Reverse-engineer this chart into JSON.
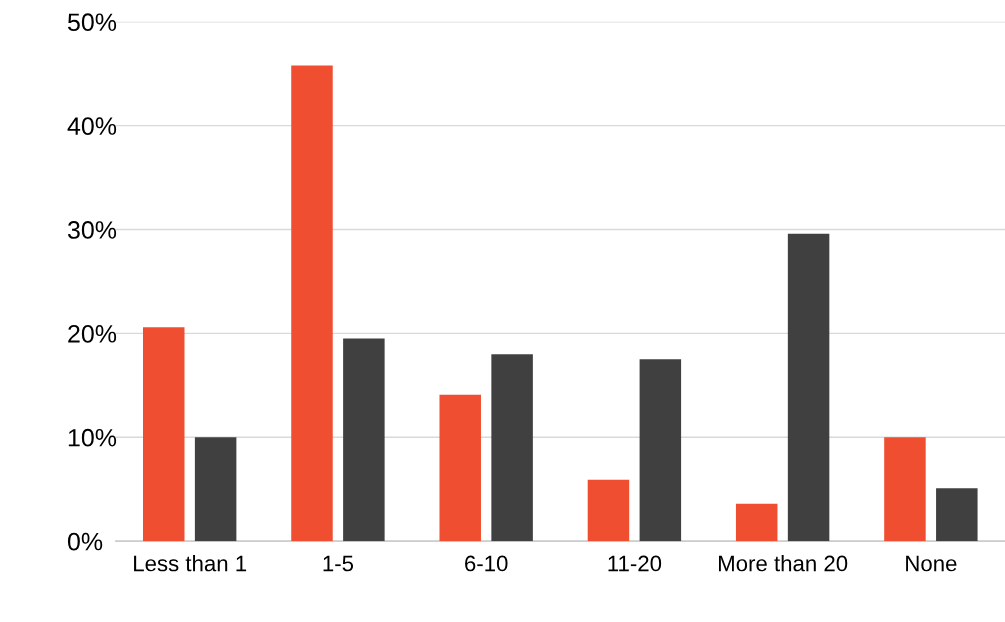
{
  "chart_data": {
    "type": "bar",
    "categories": [
      "Less than 1",
      "1-5",
      "6-10",
      "11-20",
      "More than 20",
      "None"
    ],
    "series": [
      {
        "color": "#f04e30",
        "values": [
          20.6,
          45.8,
          14.1,
          5.9,
          3.6,
          10.0
        ]
      },
      {
        "color": "#404040",
        "values": [
          10.0,
          19.5,
          18.0,
          17.5,
          29.6,
          5.1
        ]
      }
    ],
    "ylim": [
      0,
      50
    ],
    "yticks": [
      {
        "value": 0,
        "label": "0%"
      },
      {
        "value": 10,
        "label": "10%"
      },
      {
        "value": 20,
        "label": "20%"
      },
      {
        "value": 30,
        "label": "30%"
      },
      {
        "value": 40,
        "label": "40%"
      },
      {
        "value": 50,
        "label": "50%"
      }
    ],
    "grid": "y"
  }
}
